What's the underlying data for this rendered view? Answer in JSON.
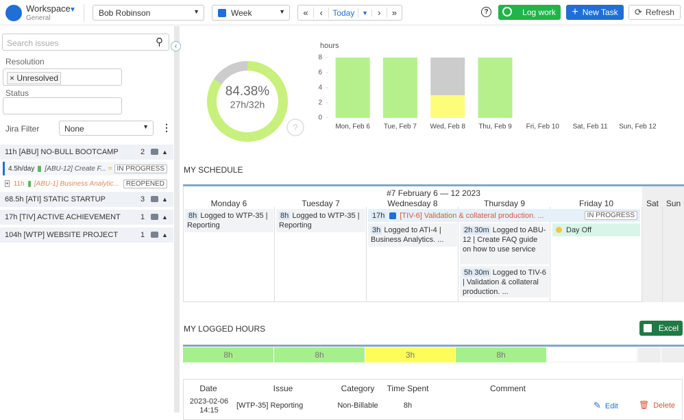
{
  "header": {
    "workspace": "Workspace",
    "workspace_sub": "General",
    "user": "Bob Robinson",
    "view": "Week",
    "today": "Today",
    "log_work": "Log work",
    "new_task": "New Task",
    "refresh": "Refresh"
  },
  "sidebar": {
    "search_placeholder": "Search issues",
    "resolution_label": "Resolution",
    "resolution_chip": "Unresolved",
    "status_label": "Status",
    "jira_filter_label": "Jira Filter",
    "jira_filter_value": "None",
    "groups": [
      {
        "hours": "11h",
        "name": "[ABU] NO-BULL BOOTCAMP",
        "count": 2,
        "items": [
          {
            "hours": "4.5h/day",
            "key": "[ABU-12] Create F...",
            "status": "IN PROGRESS"
          },
          {
            "hours": "11h",
            "key": "[ABU-1] Business Analytic...",
            "status": "REOPENED"
          }
        ]
      },
      {
        "hours": "68.5h",
        "name": "[ATI] STATIC STARTUP",
        "count": 3
      },
      {
        "hours": "17h",
        "name": "[TIV] ACTIVE ACHIEVEMENT",
        "count": 1
      },
      {
        "hours": "104h",
        "name": "[WTP] WEBSITE PROJECT",
        "count": 1
      }
    ]
  },
  "chart_data": [
    {
      "type": "pie",
      "center_label": "84.38%",
      "sub_label": "27h/32h",
      "values": [
        84.38,
        15.62
      ],
      "colors": [
        "#c8f07c",
        "#cccccc"
      ]
    },
    {
      "type": "bar",
      "stacked": true,
      "ylabel": "hours",
      "categories": [
        "Mon, Feb 6",
        "Tue, Feb 7",
        "Wed, Feb 8",
        "Thu, Feb 9",
        "Fri, Feb 10",
        "Sat, Feb 11",
        "Sun, Feb 12"
      ],
      "series": [
        {
          "color": "#b6f08c",
          "values": [
            8,
            8,
            0,
            8,
            0,
            0,
            0
          ]
        },
        {
          "color": "#fdfd7a",
          "values": [
            0,
            0,
            3,
            0,
            0,
            0,
            0
          ]
        },
        {
          "color": "#cccccc",
          "values": [
            0,
            0,
            5,
            0,
            0,
            0,
            0
          ]
        }
      ],
      "ylim": [
        0,
        8
      ],
      "yticks": [
        0,
        2,
        4,
        6,
        8
      ]
    }
  ],
  "schedule": {
    "title": "MY SCHEDULE",
    "week": "#7 February 6 — 12 2023",
    "days": [
      "Monday 6",
      "Tuesday 7",
      "Wednesday 8",
      "Thursday 9",
      "Friday 10",
      "Sat",
      "Sun"
    ],
    "span": {
      "hours": "17h",
      "text": "[TIV-6] Validation & collateral production. ...",
      "status": "IN PROGRESS"
    },
    "entries": [
      {
        "hours": "8h",
        "text": "Logged to WTP-35 | Reporting"
      },
      {
        "hours": "8h",
        "text": "Logged to WTP-35 | Reporting"
      },
      {
        "hours": "3h",
        "text": "Logged to ATI-4 | Business Analytics. ..."
      },
      {
        "hours": "2h 30m",
        "text": "Logged to ABU-12 | Create FAQ guide on how to use service"
      },
      {
        "hours": "5h 30m",
        "text": "Logged to TIV-6 | Validation & collateral production. ..."
      }
    ],
    "day_off": "Day Off"
  },
  "logged": {
    "title": "MY LOGGED HOURS",
    "excel": "Excel",
    "days": [
      "8h",
      "8h",
      "3h",
      "8h"
    ],
    "columns": [
      "Date",
      "Issue",
      "Category",
      "Time Spent",
      "Comment"
    ],
    "rows": [
      [
        "2023-02-06 14:15",
        "[WTP-35] Reporting",
        "Non-Billable",
        "8h"
      ]
    ],
    "edit": "Edit",
    "delete": "Delete"
  }
}
